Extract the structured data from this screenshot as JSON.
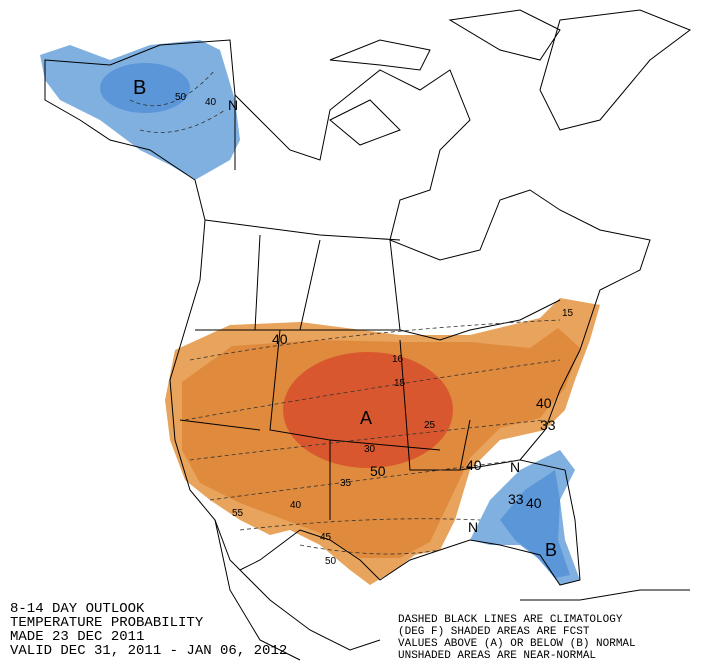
{
  "header": {
    "lines": [
      "8-14 DAY OUTLOOK",
      "TEMPERATURE PROBABILITY",
      "MADE  23 DEC 2011",
      "VALID  DEC 31, 2011 - JAN 06, 2012"
    ]
  },
  "legend": {
    "lines": [
      "DASHED BLACK LINES ARE CLIMATOLOGY",
      "(DEG F) SHADED AREAS ARE FCST",
      "VALUES ABOVE (A) OR BELOW (B) NORMAL",
      "UNSHADED AREAS ARE NEAR-NORMAL"
    ]
  },
  "map_labels": {
    "alaska": [
      "B",
      "50",
      "40",
      "N"
    ],
    "west": [
      "40"
    ],
    "center": [
      "A",
      "50"
    ],
    "east": [
      "40",
      "33",
      "40",
      "N",
      "33",
      "40",
      "B",
      "N"
    ],
    "climatology": [
      "16",
      "15",
      "25",
      "30",
      "35",
      "40",
      "45",
      "55",
      "50",
      "15"
    ]
  }
}
